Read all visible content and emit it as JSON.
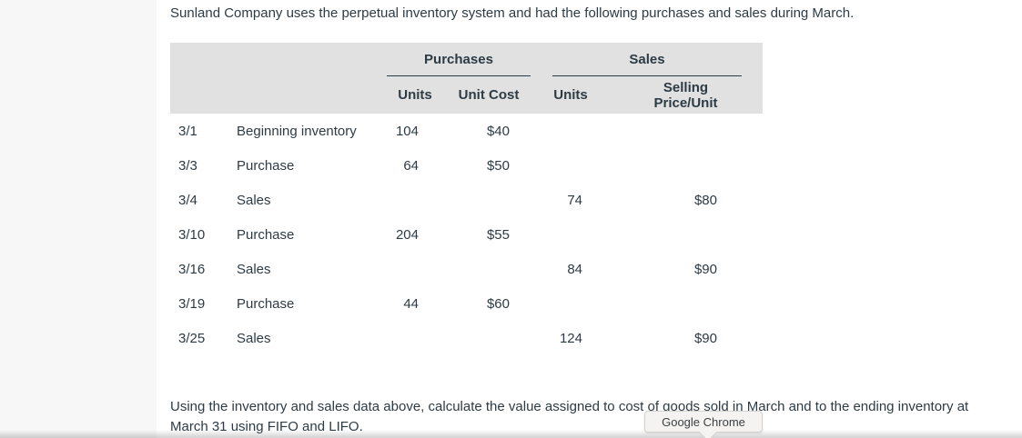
{
  "question": {
    "intro": "Sunland Company uses the perpetual inventory system and had the following purchases and sales during March.",
    "prompt_line1": "Using the inventory and sales data above, calculate the value assigned to cost of goods sold in March and to the ending inventory at",
    "prompt_line2": "March 31 using FIFO and LIFO."
  },
  "table": {
    "groups": {
      "purchases": "Purchases",
      "sales": "Sales"
    },
    "columns": {
      "date": "",
      "description": "",
      "purchase_units": "Units",
      "unit_cost": "Unit Cost",
      "sales_units": "Units",
      "selling_price": "Selling Price/Unit"
    },
    "rows": [
      {
        "date": "3/1",
        "description": "Beginning inventory",
        "purchase_units": "104",
        "unit_cost": "$40",
        "sales_units": "",
        "selling_price": ""
      },
      {
        "date": "3/3",
        "description": "Purchase",
        "purchase_units": "64",
        "unit_cost": "$50",
        "sales_units": "",
        "selling_price": ""
      },
      {
        "date": "3/4",
        "description": "Sales",
        "purchase_units": "",
        "unit_cost": "",
        "sales_units": "74",
        "selling_price": "$80"
      },
      {
        "date": "3/10",
        "description": "Purchase",
        "purchase_units": "204",
        "unit_cost": "$55",
        "sales_units": "",
        "selling_price": ""
      },
      {
        "date": "3/16",
        "description": "Sales",
        "purchase_units": "",
        "unit_cost": "",
        "sales_units": "84",
        "selling_price": "$90"
      },
      {
        "date": "3/19",
        "description": "Purchase",
        "purchase_units": "44",
        "unit_cost": "$60",
        "sales_units": "",
        "selling_price": ""
      },
      {
        "date": "3/25",
        "description": "Sales",
        "purchase_units": "",
        "unit_cost": "",
        "sales_units": "124",
        "selling_price": "$90"
      }
    ]
  },
  "tooltip": {
    "label": "Google Chrome"
  },
  "colors": {
    "text": "#2d3b45",
    "table_header_bg": "#e1e1e1",
    "left_gutter_bg": "#f7f7f7",
    "content_bg": "#ffffff",
    "tooltip_bg": "#f4f3f1",
    "tooltip_border": "#d5d2ce",
    "tooltip_text": "#3c4043",
    "header_underline": "#2d3b45"
  }
}
